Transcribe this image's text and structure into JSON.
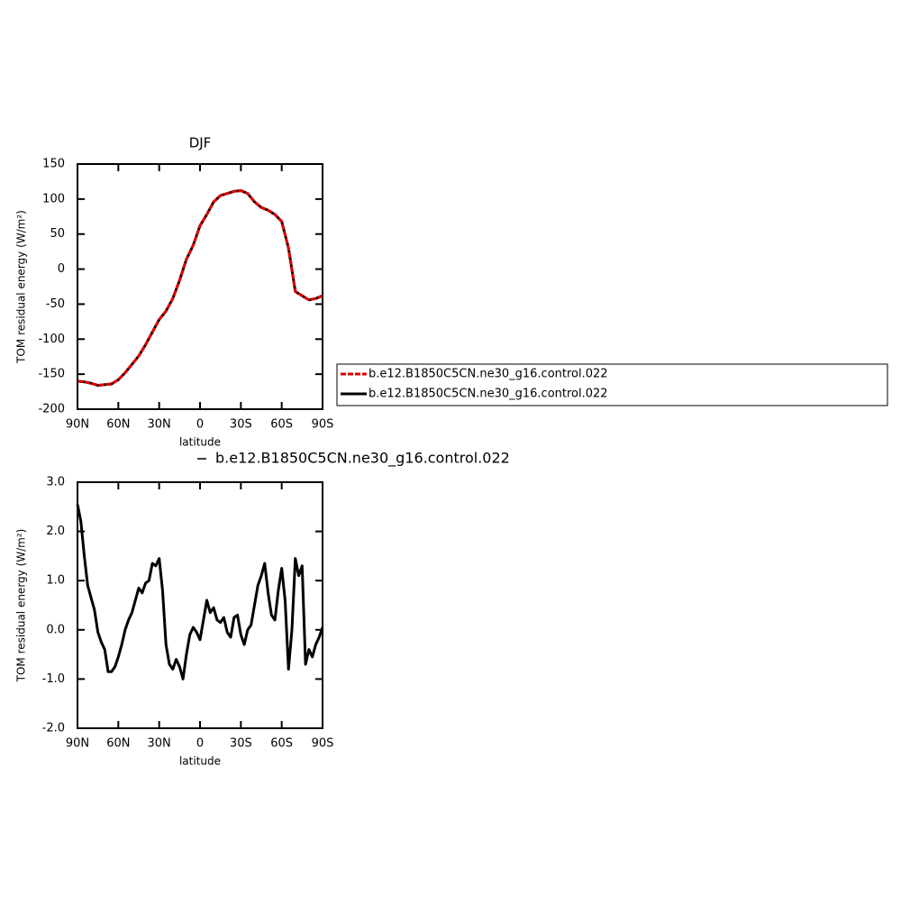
{
  "chart_data": [
    {
      "type": "line",
      "title": "DJF",
      "xlabel": "latitude",
      "ylabel": "TOM residual energy (W/m²)",
      "x": [
        90,
        85,
        80,
        75,
        70,
        65,
        60,
        55,
        50,
        45,
        40,
        35,
        30,
        25,
        20,
        15,
        10,
        5,
        0,
        -5,
        -10,
        -15,
        -20,
        -25,
        -30,
        -35,
        -40,
        -45,
        -50,
        -55,
        -60,
        -65,
        -70,
        -75,
        -80,
        -85,
        -90
      ],
      "series": [
        {
          "name": "b.e12.B1850C5CN.ne30_g16.control.022",
          "color": "#e00000",
          "dash": "dashed",
          "values": [
            -160,
            -161,
            -163,
            -166,
            -165,
            -164,
            -158,
            -148,
            -136,
            -124,
            -108,
            -90,
            -72,
            -60,
            -42,
            -16,
            14,
            34,
            62,
            78,
            96,
            105,
            108,
            111,
            112,
            108,
            96,
            88,
            84,
            78,
            68,
            30,
            -32,
            -38,
            -44,
            -42,
            -38
          ]
        },
        {
          "name": "b.e12.B1850C5CN.ne30_g16.control.022",
          "color": "#000000",
          "dash": "solid",
          "values": [
            -160,
            -161,
            -163,
            -166,
            -165,
            -164,
            -158,
            -148,
            -136,
            -124,
            -108,
            -90,
            -72,
            -60,
            -42,
            -16,
            14,
            34,
            62,
            78,
            96,
            105,
            108,
            111,
            112,
            108,
            96,
            88,
            84,
            78,
            68,
            30,
            -32,
            -38,
            -44,
            -42,
            -38
          ]
        }
      ],
      "xlim": [
        90,
        -90
      ],
      "xticks": [
        {
          "value": 90,
          "label": "90N"
        },
        {
          "value": 60,
          "label": "60N"
        },
        {
          "value": 30,
          "label": "30N"
        },
        0,
        {
          "value": -30,
          "label": "30S"
        },
        {
          "value": -60,
          "label": "60S"
        },
        {
          "value": -90,
          "label": "90S"
        }
      ],
      "ylim": [
        -200,
        150
      ],
      "yticks": [
        -200,
        -150,
        -100,
        -50,
        0,
        50,
        100,
        150
      ],
      "legend": "right"
    },
    {
      "type": "line",
      "xlabel": "latitude",
      "ylabel": "TOM residual energy (W/m²)",
      "x": [
        90,
        87.5,
        85,
        82.5,
        80,
        77.5,
        75,
        72.5,
        70,
        67.5,
        65,
        62.5,
        60,
        57.5,
        55,
        52.5,
        50,
        47.5,
        45,
        42.5,
        40,
        37.5,
        35,
        32.5,
        30,
        27.5,
        25,
        22.5,
        20,
        17.5,
        15,
        12.5,
        10,
        7.5,
        5,
        2.5,
        0,
        -2.5,
        -5,
        -7.5,
        -10,
        -12.5,
        -15,
        -17.5,
        -20,
        -22.5,
        -25,
        -27.5,
        -30,
        -32.5,
        -35,
        -37.5,
        -40,
        -42.5,
        -45,
        -47.5,
        -50,
        -52.5,
        -55,
        -57.5,
        -60,
        -62.5,
        -65,
        -67.5,
        -70,
        -72.5,
        -75,
        -77.5,
        -80,
        -82.5,
        -85,
        -87.5,
        -90
      ],
      "series": [
        {
          "name": "b.e12.B1850C5CN.ne30_g16.control.022",
          "color": "#000000",
          "dash": "solid",
          "values": [
            2.55,
            2.2,
            1.5,
            0.9,
            0.65,
            0.4,
            -0.05,
            -0.25,
            -0.4,
            -0.85,
            -0.85,
            -0.75,
            -0.55,
            -0.3,
            0.0,
            0.2,
            0.35,
            0.6,
            0.85,
            0.75,
            0.95,
            1.0,
            1.35,
            1.3,
            1.45,
            0.8,
            -0.3,
            -0.7,
            -0.8,
            -0.6,
            -0.75,
            -1.0,
            -0.5,
            -0.1,
            0.05,
            -0.05,
            -0.2,
            0.2,
            0.6,
            0.35,
            0.45,
            0.2,
            0.15,
            0.25,
            -0.05,
            -0.15,
            0.25,
            0.3,
            -0.1,
            -0.3,
            0.0,
            0.1,
            0.5,
            0.9,
            1.1,
            1.35,
            0.75,
            0.3,
            0.2,
            0.8,
            1.25,
            0.6,
            -0.8,
            0.0,
            1.45,
            1.1,
            1.3,
            -0.7,
            -0.4,
            -0.55,
            -0.3,
            -0.15,
            0.05
          ]
        }
      ],
      "xlim": [
        90,
        -90
      ],
      "xticks": [
        {
          "value": 90,
          "label": "90N"
        },
        {
          "value": 60,
          "label": "60N"
        },
        {
          "value": 30,
          "label": "30N"
        },
        0,
        {
          "value": -30,
          "label": "30S"
        },
        {
          "value": -60,
          "label": "60S"
        },
        {
          "value": -90,
          "label": "90S"
        }
      ],
      "ylim": [
        -2,
        3
      ],
      "yticks": [
        {
          "value": -2,
          "label": "-2.0"
        },
        {
          "value": -1,
          "label": "-1.0"
        },
        {
          "value": 0,
          "label": "0.0"
        },
        {
          "value": 1,
          "label": "1.0"
        },
        {
          "value": 2,
          "label": "2.0"
        },
        {
          "value": 3,
          "label": "3.0"
        }
      ],
      "legend": "top"
    }
  ]
}
